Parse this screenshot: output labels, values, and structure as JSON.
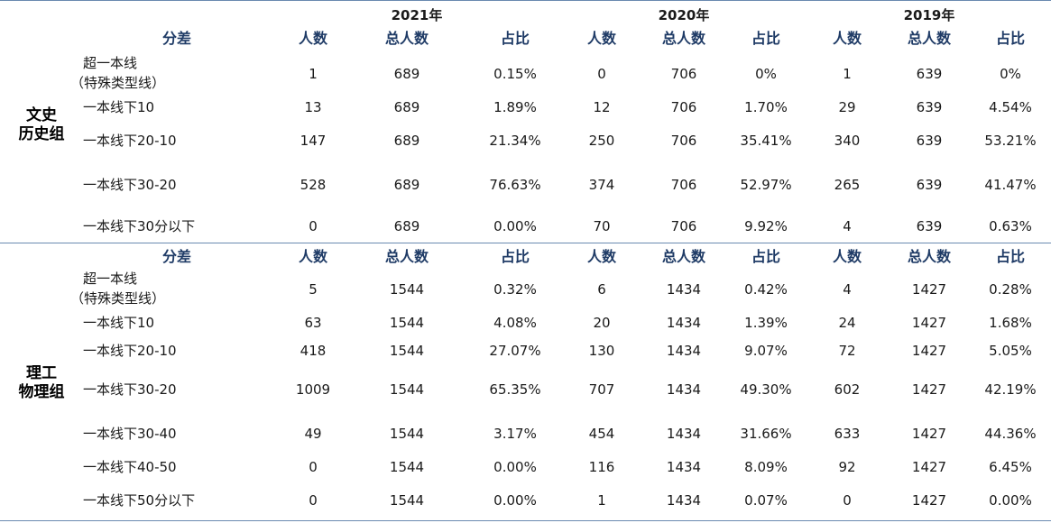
{
  "years": [
    "2021年",
    "2020年",
    "2019年"
  ],
  "headers": [
    "分差",
    "人数",
    "总人数",
    "占比",
    "人数",
    "总人数",
    "占比",
    "人数",
    "总人数",
    "占比"
  ],
  "sections": [
    {
      "name_lines": [
        "文史",
        "历史组"
      ],
      "rows": [
        {
          "label": [
            "超一本线",
            "（特殊类型线）"
          ],
          "cells": [
            "1",
            "689",
            "0.15%",
            "0",
            "706",
            "0%",
            "1",
            "639",
            "0%"
          ]
        },
        {
          "label": [
            "一本线下10"
          ],
          "cells": [
            "13",
            "689",
            "1.89%",
            "12",
            "706",
            "1.70%",
            "29",
            "639",
            "4.54%"
          ]
        },
        {
          "label": [
            "一本线下20-10"
          ],
          "cells": [
            "147",
            "689",
            "21.34%",
            "250",
            "706",
            "35.41%",
            "340",
            "639",
            "53.21%"
          ]
        },
        {
          "label": [
            "一本线下30-20"
          ],
          "cells": [
            "528",
            "689",
            "76.63%",
            "374",
            "706",
            "52.97%",
            "265",
            "639",
            "41.47%"
          ]
        },
        {
          "label": [
            "一本线下30分以下"
          ],
          "cells": [
            "0",
            "689",
            "0.00%",
            "70",
            "706",
            "9.92%",
            "4",
            "639",
            "0.63%"
          ]
        }
      ]
    },
    {
      "name_lines": [
        "理工",
        "物理组"
      ],
      "rows": [
        {
          "label": [
            "超一本线",
            "（特殊类型线）"
          ],
          "cells": [
            "5",
            "1544",
            "0.32%",
            "6",
            "1434",
            "0.42%",
            "4",
            "1427",
            "0.28%"
          ]
        },
        {
          "label": [
            "一本线下10"
          ],
          "cells": [
            "63",
            "1544",
            "4.08%",
            "20",
            "1434",
            "1.39%",
            "24",
            "1427",
            "1.68%"
          ]
        },
        {
          "label": [
            "一本线下20-10"
          ],
          "cells": [
            "418",
            "1544",
            "27.07%",
            "130",
            "1434",
            "9.07%",
            "72",
            "1427",
            "5.05%"
          ]
        },
        {
          "label": [
            "一本线下30-20"
          ],
          "cells": [
            "1009",
            "1544",
            "65.35%",
            "707",
            "1434",
            "49.30%",
            "602",
            "1427",
            "42.19%"
          ]
        },
        {
          "label": [
            "一本线下30-40"
          ],
          "cells": [
            "49",
            "1544",
            "3.17%",
            "454",
            "1434",
            "31.66%",
            "633",
            "1427",
            "44.36%"
          ]
        },
        {
          "label": [
            "一本线下40-50"
          ],
          "cells": [
            "0",
            "1544",
            "0.00%",
            "116",
            "1434",
            "8.09%",
            "92",
            "1427",
            "6.45%"
          ]
        },
        {
          "label": [
            "一本线下50分以下"
          ],
          "cells": [
            "0",
            "1544",
            "0.00%",
            "1",
            "1434",
            "0.07%",
            "0",
            "1427",
            "0.00%"
          ]
        }
      ]
    }
  ]
}
